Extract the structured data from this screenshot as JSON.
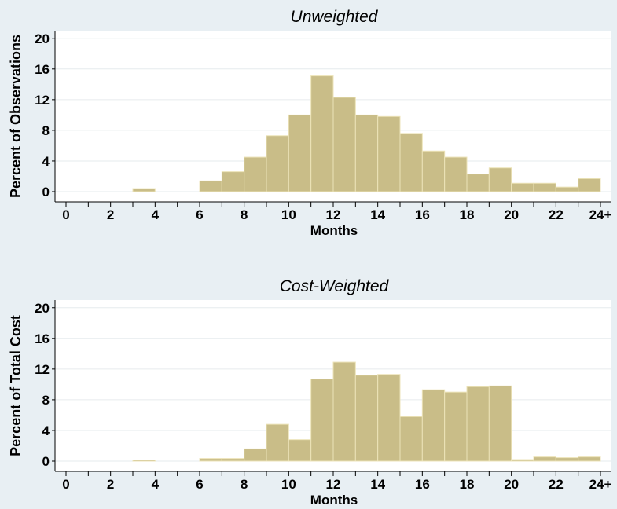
{
  "chart_data": [
    {
      "type": "bar",
      "title": "Unweighted",
      "xlabel": "Months",
      "ylabel": "Percent of Observations",
      "ylim": [
        0,
        21
      ],
      "yticks": [
        "0",
        "4",
        "8",
        "12",
        "16",
        "20"
      ],
      "xticks": [
        "0",
        "2",
        "4",
        "6",
        "8",
        "10",
        "12",
        "14",
        "16",
        "18",
        "20",
        "22",
        "24+"
      ],
      "grid": true,
      "bins_start": [
        0,
        1,
        2,
        3,
        4,
        5,
        6,
        7,
        8,
        9,
        10,
        11,
        12,
        13,
        14,
        15,
        16,
        17,
        18,
        19,
        20,
        21,
        22,
        23
      ],
      "values": [
        0,
        0,
        0,
        0.4,
        0,
        0,
        1.4,
        2.6,
        4.5,
        7.3,
        10.0,
        15.1,
        12.3,
        10.0,
        9.8,
        7.6,
        5.3,
        4.5,
        2.3,
        3.1,
        1.1,
        1.1,
        0.6,
        1.7
      ]
    },
    {
      "type": "bar",
      "title": "Cost-Weighted",
      "xlabel": "Months",
      "ylabel": "Percent of Total Cost",
      "ylim": [
        0,
        21
      ],
      "yticks": [
        "0",
        "4",
        "8",
        "12",
        "16",
        "20"
      ],
      "xticks": [
        "0",
        "2",
        "4",
        "6",
        "8",
        "10",
        "12",
        "14",
        "16",
        "18",
        "20",
        "22",
        "24+"
      ],
      "grid": true,
      "bins_start": [
        0,
        1,
        2,
        3,
        4,
        5,
        6,
        7,
        8,
        9,
        10,
        11,
        12,
        13,
        14,
        15,
        16,
        17,
        18,
        19,
        20,
        21,
        22,
        23
      ],
      "values": [
        0,
        0,
        0,
        0.15,
        0,
        0,
        0.35,
        0.35,
        1.6,
        4.8,
        2.8,
        10.7,
        12.9,
        11.2,
        11.3,
        5.8,
        9.3,
        9.0,
        9.7,
        9.8,
        0.2,
        0.55,
        0.45,
        0.55
      ]
    }
  ]
}
